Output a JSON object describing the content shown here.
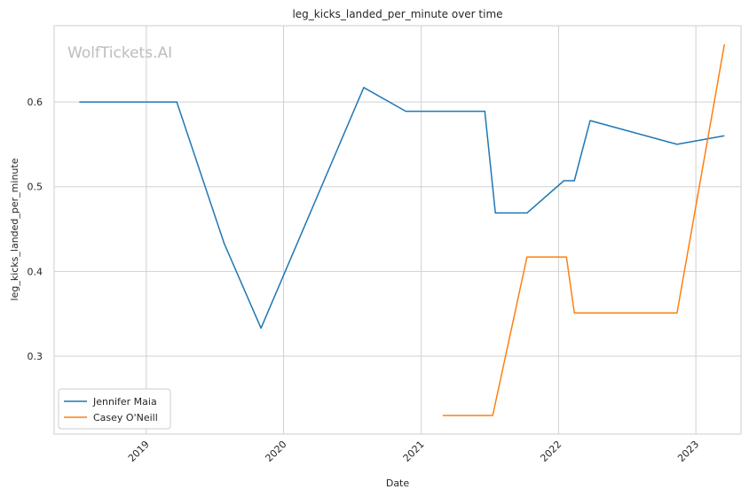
{
  "watermark": "WolfTickets.AI",
  "chart_data": {
    "type": "line",
    "title": "leg_kicks_landed_per_minute over time",
    "xlabel": "Date",
    "ylabel": "leg_kicks_landed_per_minute",
    "x_axis_type": "date",
    "xlim": [
      "2018-05-01",
      "2023-05-01"
    ],
    "ylim": [
      0.208,
      0.69
    ],
    "x_ticks": [
      {
        "label": "2019",
        "date": "2019-01-01"
      },
      {
        "label": "2020",
        "date": "2020-01-01"
      },
      {
        "label": "2021",
        "date": "2021-01-01"
      },
      {
        "label": "2022",
        "date": "2022-01-01"
      },
      {
        "label": "2023",
        "date": "2023-01-01"
      }
    ],
    "y_ticks": [
      {
        "label": "0.3",
        "value": 0.3
      },
      {
        "label": "0.4",
        "value": 0.4
      },
      {
        "label": "0.5",
        "value": 0.5
      },
      {
        "label": "0.6",
        "value": 0.6
      }
    ],
    "grid": true,
    "legend_position": "lower-left",
    "series": [
      {
        "name": "Jennifer Maia",
        "color": "#1f77b4",
        "points": [
          {
            "x": "2018-07-07",
            "y": 0.6
          },
          {
            "x": "2019-03-23",
            "y": 0.6
          },
          {
            "x": "2019-07-27",
            "y": 0.433
          },
          {
            "x": "2019-11-02",
            "y": 0.333
          },
          {
            "x": "2020-08-01",
            "y": 0.617
          },
          {
            "x": "2020-11-21",
            "y": 0.589
          },
          {
            "x": "2021-06-19",
            "y": 0.589
          },
          {
            "x": "2021-07-17",
            "y": 0.469
          },
          {
            "x": "2021-10-09",
            "y": 0.469
          },
          {
            "x": "2022-01-15",
            "y": 0.507
          },
          {
            "x": "2022-02-12",
            "y": 0.507
          },
          {
            "x": "2022-03-26",
            "y": 0.578
          },
          {
            "x": "2022-11-12",
            "y": 0.55
          },
          {
            "x": "2023-03-18",
            "y": 0.56
          }
        ]
      },
      {
        "name": "Casey O'Neill",
        "color": "#ff7f0e",
        "points": [
          {
            "x": "2021-02-27",
            "y": 0.23
          },
          {
            "x": "2021-07-10",
            "y": 0.23
          },
          {
            "x": "2021-10-09",
            "y": 0.417
          },
          {
            "x": "2022-01-22",
            "y": 0.417
          },
          {
            "x": "2022-02-12",
            "y": 0.351
          },
          {
            "x": "2022-11-12",
            "y": 0.351
          },
          {
            "x": "2023-03-18",
            "y": 0.668
          }
        ]
      }
    ]
  }
}
